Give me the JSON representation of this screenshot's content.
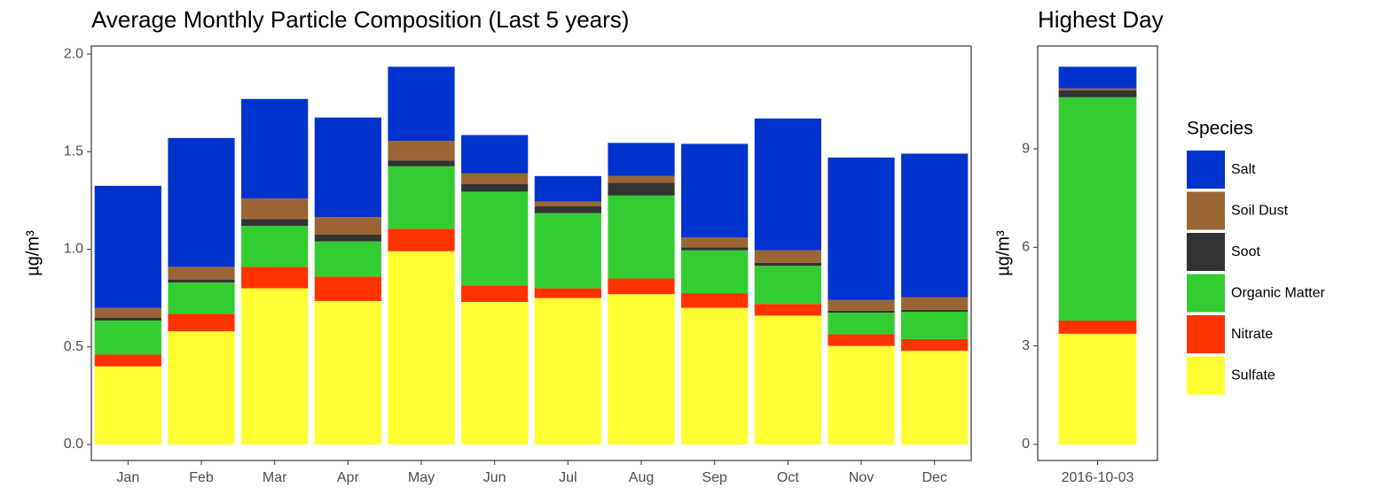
{
  "chart_data": [
    {
      "type": "stacked_bar",
      "title": "Average Monthly Particle Composition (Last 5 years)",
      "y_label": "µg/m³",
      "categories": [
        "Jan",
        "Feb",
        "Mar",
        "Apr",
        "May",
        "Jun",
        "Jul",
        "Aug",
        "Sep",
        "Oct",
        "Nov",
        "Dec"
      ],
      "legend_title": "Species",
      "series": [
        {
          "name": "Salt",
          "color": "#0033cc",
          "values": [
            0.625,
            0.66,
            0.51,
            0.51,
            0.38,
            0.195,
            0.13,
            0.17,
            0.48,
            0.675,
            0.73,
            0.735
          ]
        },
        {
          "name": "Soil Dust",
          "color": "#996633",
          "values": [
            0.05,
            0.065,
            0.105,
            0.09,
            0.1,
            0.055,
            0.025,
            0.035,
            0.05,
            0.065,
            0.055,
            0.065
          ]
        },
        {
          "name": "Soot",
          "color": "#333333",
          "values": [
            0.015,
            0.015,
            0.035,
            0.035,
            0.03,
            0.04,
            0.035,
            0.065,
            0.015,
            0.015,
            0.01,
            0.01
          ]
        },
        {
          "name": "Organic Matter",
          "color": "#33cc33",
          "values": [
            0.175,
            0.16,
            0.21,
            0.18,
            0.32,
            0.48,
            0.385,
            0.425,
            0.22,
            0.195,
            0.11,
            0.14
          ]
        },
        {
          "name": "Nitrate",
          "color": "#ff3300",
          "values": [
            0.06,
            0.09,
            0.11,
            0.125,
            0.115,
            0.085,
            0.05,
            0.08,
            0.075,
            0.06,
            0.06,
            0.06
          ]
        },
        {
          "name": "Sulfate",
          "color": "#ffff33",
          "values": [
            0.4,
            0.58,
            0.8,
            0.735,
            0.99,
            0.73,
            0.75,
            0.77,
            0.7,
            0.66,
            0.505,
            0.48
          ]
        }
      ],
      "ylim": [
        -0.082,
        2.041
      ],
      "yticks": [
        {
          "value": 0,
          "label": "0.0"
        },
        {
          "value": 0.5,
          "label": "0.5"
        },
        {
          "value": 1,
          "label": "1.0"
        },
        {
          "value": 1.5,
          "label": "1.5"
        },
        {
          "value": 2,
          "label": "2.0"
        }
      ]
    },
    {
      "type": "stacked_bar",
      "title": "Highest Day",
      "y_label": "µg/m³",
      "categories": [
        "2016-10-03"
      ],
      "series": [
        {
          "color": "#0033cc",
          "values": [
            0.66
          ]
        },
        {
          "color": "#996633",
          "values": [
            0.06
          ]
        },
        {
          "color": "#333333",
          "values": [
            0.21
          ]
        },
        {
          "color": "#33cc33",
          "values": [
            6.8
          ]
        },
        {
          "color": "#ff3300",
          "values": [
            0.4
          ]
        },
        {
          "color": "#ffff33",
          "values": [
            3.37
          ]
        }
      ],
      "ylim": [
        -0.49,
        12.13
      ],
      "yticks": [
        0,
        3,
        6,
        9
      ]
    }
  ]
}
